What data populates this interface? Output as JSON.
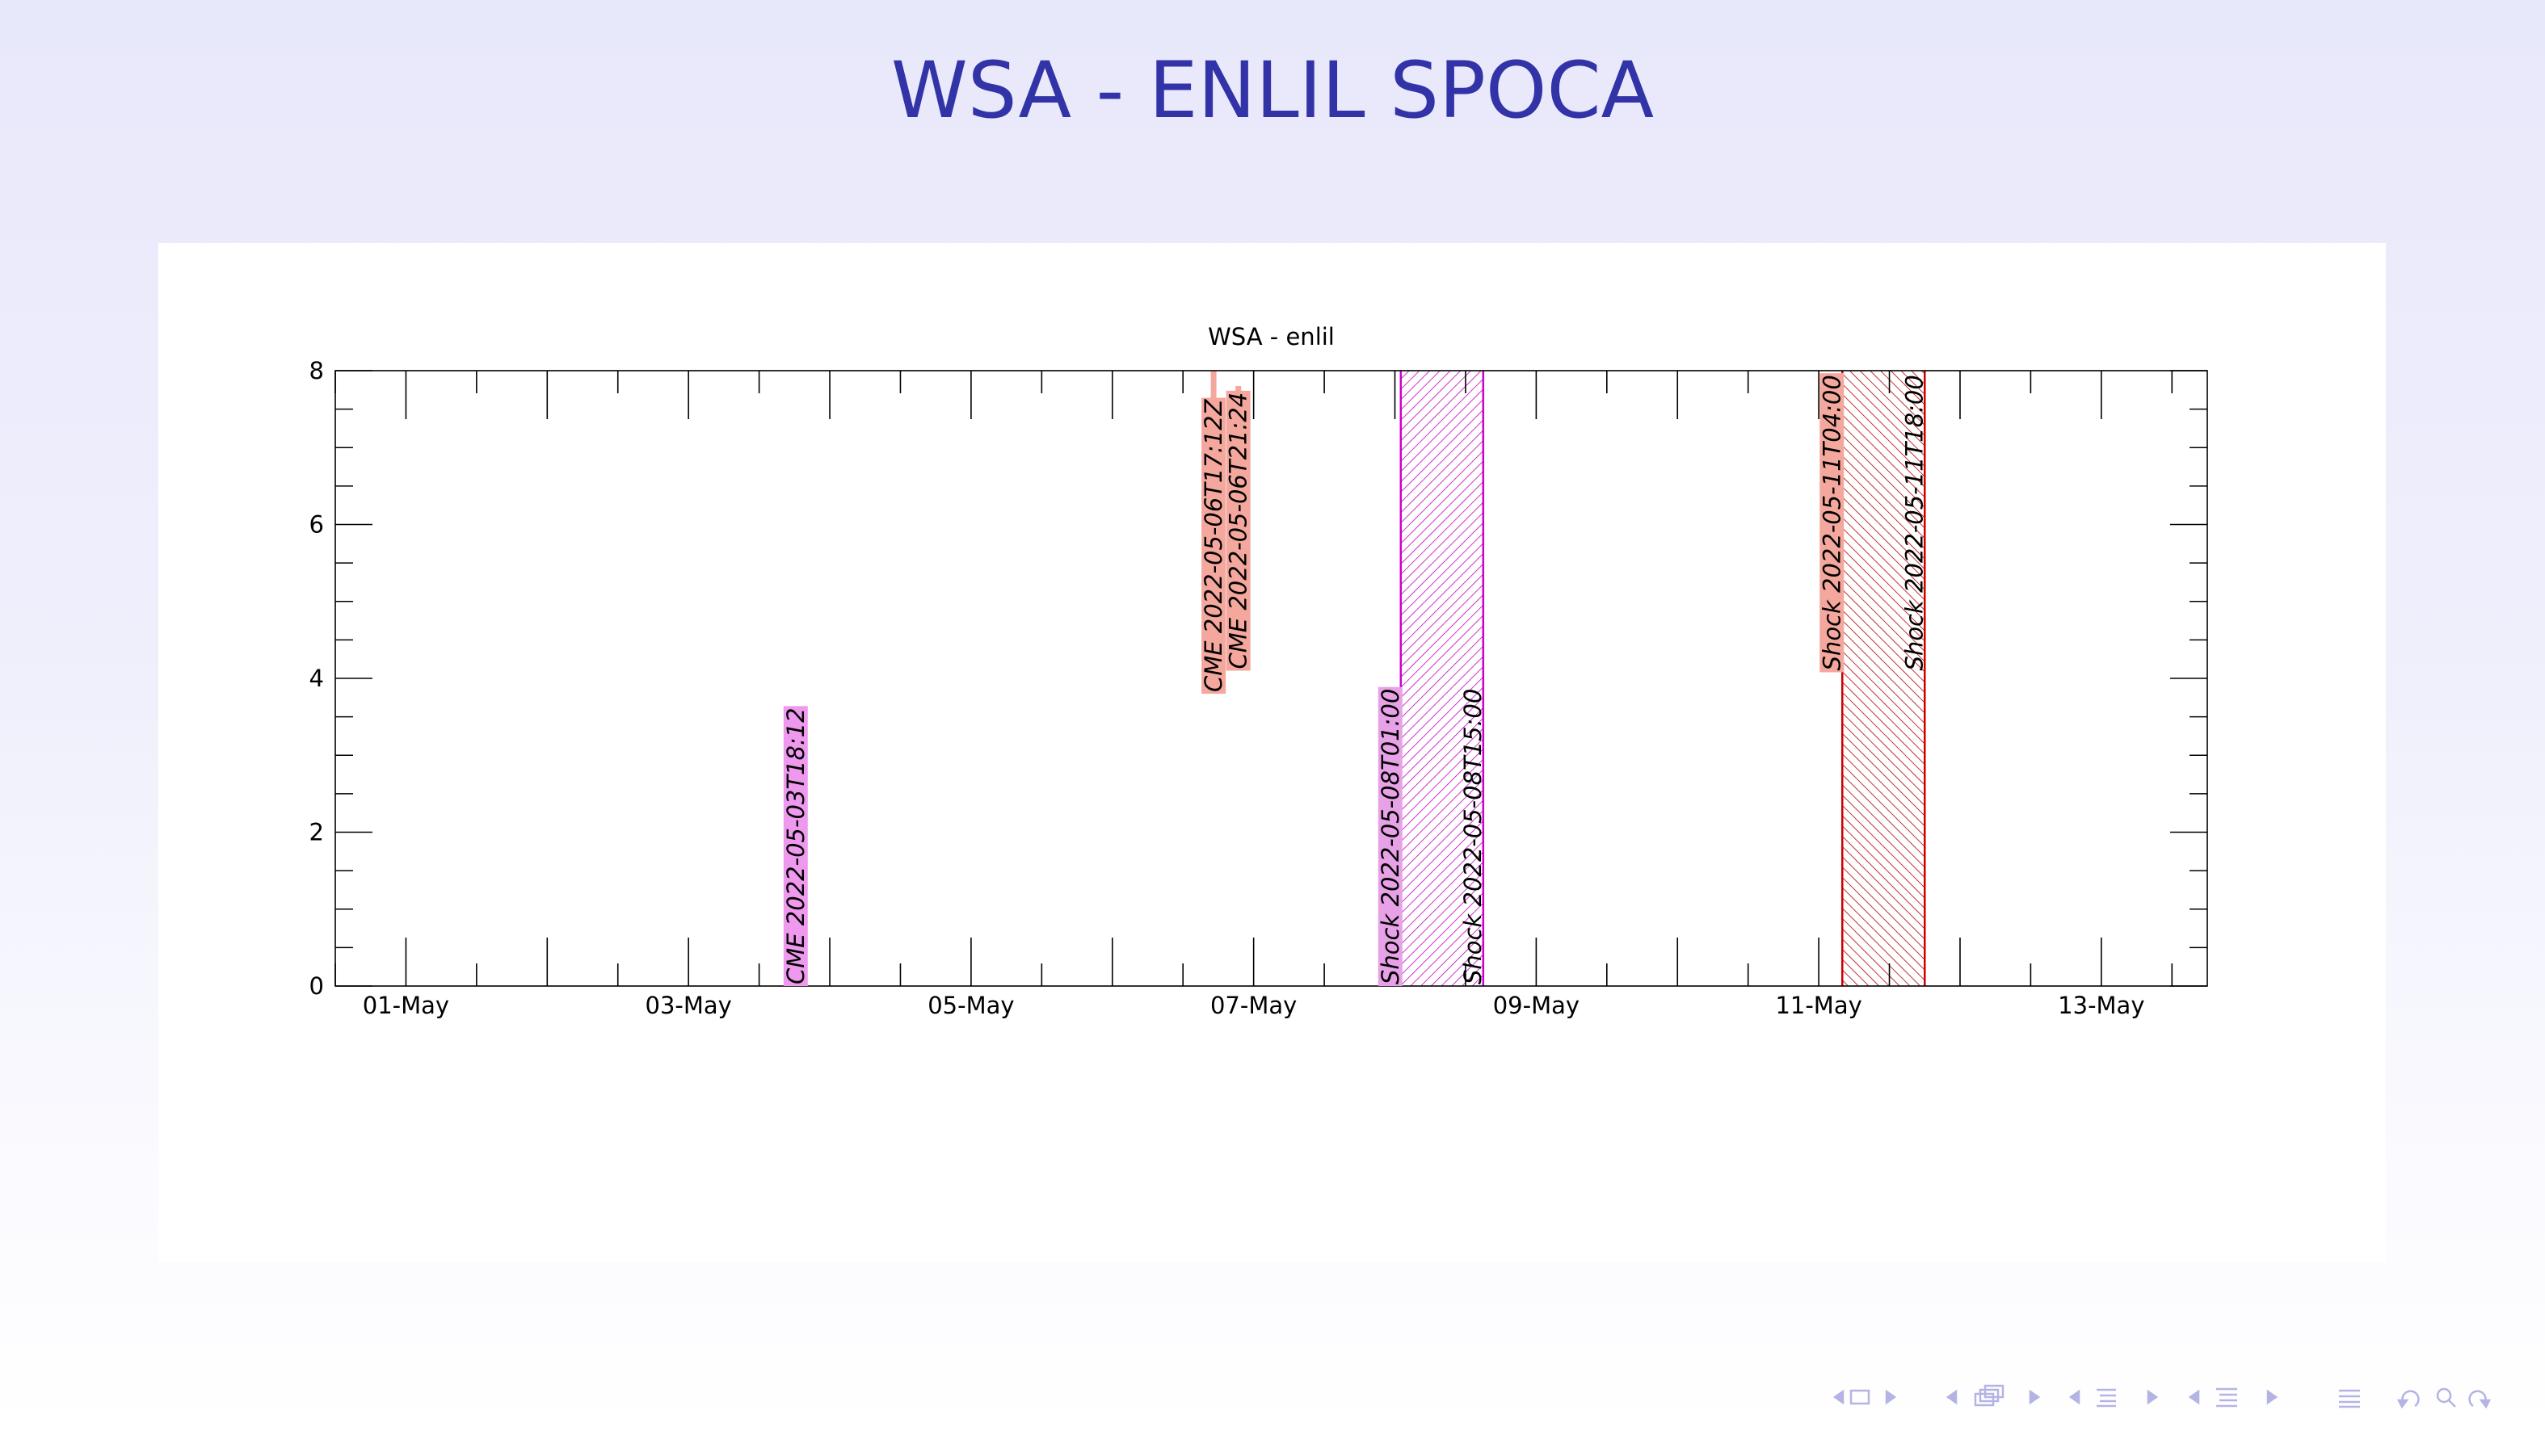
{
  "slide": {
    "title": "WSA - ENLIL SPOCA"
  },
  "chart_data": {
    "type": "event-timeline",
    "title": "WSA - enlil",
    "xlabel": "",
    "ylabel": "",
    "x_range": [
      "2022-04-30T12:00",
      "2022-05-13T18:00"
    ],
    "ylim": [
      0,
      8
    ],
    "y_ticks": [
      0,
      2,
      4,
      6,
      8
    ],
    "x_tick_labels": [
      {
        "date": "2022-05-01T00:00",
        "label": "01-May"
      },
      {
        "date": "2022-05-03T00:00",
        "label": "03-May"
      },
      {
        "date": "2022-05-05T00:00",
        "label": "05-May"
      },
      {
        "date": "2022-05-07T00:00",
        "label": "07-May"
      },
      {
        "date": "2022-05-09T00:00",
        "label": "09-May"
      },
      {
        "date": "2022-05-11T00:00",
        "label": "11-May"
      },
      {
        "date": "2022-05-13T00:00",
        "label": "13-May"
      }
    ],
    "cmes": [
      {
        "time": "2022-05-03T18:12",
        "label": "CME 2022-05-03T18:12",
        "y_top": 3.6,
        "color": "#ee99ee"
      },
      {
        "time": "2022-05-06T17:12",
        "label": "CME 2022-05-06T17:12Z",
        "y_top": 8.0,
        "y_bottom": 3.8,
        "color": "#f4a79d"
      },
      {
        "time": "2022-05-06T21:24",
        "label": "CME 2022-05-06T21:24",
        "y_top": 7.8,
        "y_bottom": 4.1,
        "color": "#f4a79d"
      }
    ],
    "shock_windows": [
      {
        "start": "2022-05-08T01:00",
        "end": "2022-05-08T15:00",
        "start_label": "Shock 2022-05-08T01:00",
        "end_label": "Shock 2022-05-08T15:00",
        "color": "#cc00cc",
        "label_bg": "#e7a2e7"
      },
      {
        "start": "2022-05-11T04:00",
        "end": "2022-05-11T18:00",
        "start_label": "Shock 2022-05-11T04:00",
        "end_label": "Shock 2022-05-11T18:00",
        "color": "#cc0000",
        "label_bg": "#f4a79d"
      }
    ]
  }
}
